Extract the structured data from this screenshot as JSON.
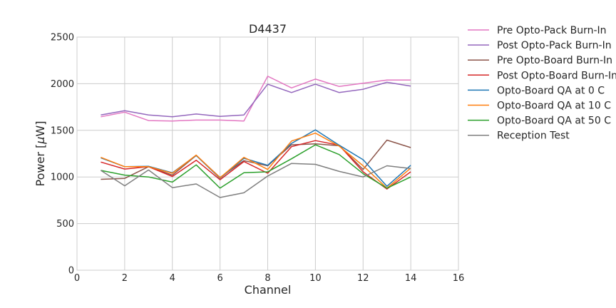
{
  "chart_data": {
    "type": "line",
    "title": "D4437",
    "xlabel": "Channel",
    "ylabel_prefix": "Power [",
    "ylabel_mu": "μ",
    "ylabel_suffix": "W]",
    "xlim": [
      0,
      16
    ],
    "ylim": [
      0,
      2500
    ],
    "xticks": [
      "0",
      "2",
      "4",
      "6",
      "8",
      "10",
      "12",
      "14",
      "16"
    ],
    "yticks": [
      "0",
      "500",
      "1000",
      "1500",
      "2000",
      "2500"
    ],
    "grid": true,
    "legend_position": "outside-right",
    "x": [
      1,
      2,
      3,
      4,
      5,
      6,
      7,
      8,
      9,
      10,
      11,
      12,
      13,
      14
    ],
    "series": [
      {
        "name": "Pre Opto-Pack Burn-In",
        "color": "#e377c2",
        "values": [
          1645,
          1695,
          1605,
          1600,
          1610,
          1610,
          1600,
          2080,
          1955,
          2050,
          1970,
          2005,
          2040,
          2040
        ]
      },
      {
        "name": "Post Opto-Pack Burn-In",
        "color": "#9467bd",
        "values": [
          1665,
          1710,
          1665,
          1645,
          1675,
          1650,
          1665,
          1995,
          1905,
          1995,
          1905,
          1940,
          2015,
          1975
        ]
      },
      {
        "name": "Pre Opto-Board Burn-In",
        "color": "#8c564b",
        "values": [
          975,
          985,
          1110,
          1020,
          1230,
          995,
          1175,
          1120,
          1345,
          1355,
          1335,
          1080,
          1395,
          1315
        ]
      },
      {
        "name": "Post Opto-Board Burn-In",
        "color": "#d62728",
        "values": [
          1160,
          1085,
          1110,
          1005,
          1180,
          970,
          1165,
          1040,
          1325,
          1390,
          1340,
          1055,
          870,
          1055
        ]
      },
      {
        "name": "Opto-Board QA at 0 C",
        "color": "#1f77b4",
        "values": [
          1205,
          1110,
          1115,
          1045,
          1230,
          985,
          1200,
          1125,
          1360,
          1505,
          1340,
          1185,
          900,
          1125
        ]
      },
      {
        "name": "Opto-Board QA at 10 C",
        "color": "#ff7f0e",
        "values": [
          1210,
          1110,
          1110,
          1040,
          1235,
          990,
          1210,
          1080,
          1385,
          1470,
          1330,
          1120,
          880,
          1095
        ]
      },
      {
        "name": "Opto-Board QA at 50 C",
        "color": "#2ca02c",
        "values": [
          1070,
          1020,
          1000,
          945,
          1130,
          880,
          1045,
          1055,
          1195,
          1345,
          1240,
          1035,
          880,
          1000
        ]
      },
      {
        "name": "Reception Test",
        "color": "#7f7f7f",
        "values": [
          1070,
          905,
          1075,
          885,
          925,
          780,
          830,
          1010,
          1145,
          1135,
          1060,
          1000,
          1120,
          1090
        ]
      }
    ]
  }
}
